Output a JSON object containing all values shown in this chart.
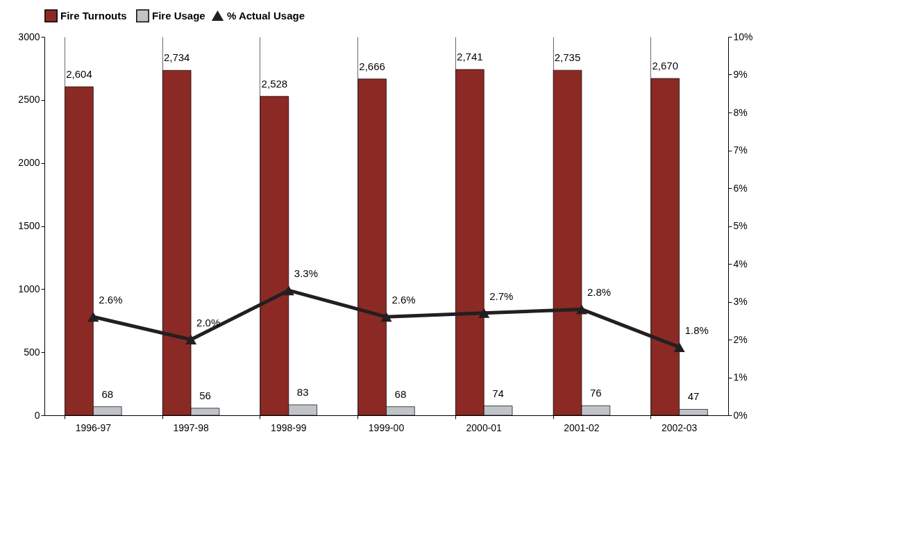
{
  "chart_data": {
    "type": "bar",
    "categories": [
      "1996-97",
      "1997-98",
      "1998-99",
      "1999-00",
      "2000-01",
      "2001-02",
      "2002-03"
    ],
    "series": [
      {
        "name": "Fire Turnouts",
        "color": "#8b2a25",
        "values": [
          2604,
          2734,
          2528,
          2666,
          2741,
          2735,
          2670
        ],
        "value_labels": [
          "2,604",
          "2,734",
          "2,528",
          "2,666",
          "2,741",
          "2,735",
          "2,670"
        ]
      },
      {
        "name": "Fire Usage",
        "color": "#c0c3c8",
        "values": [
          68,
          56,
          83,
          68,
          74,
          76,
          47
        ],
        "value_labels": [
          "68",
          "56",
          "83",
          "68",
          "74",
          "76",
          "47"
        ]
      },
      {
        "name": "% Actual Usage",
        "type": "line",
        "axis": "y2",
        "color": "#231f20",
        "values": [
          2.6,
          2.0,
          3.3,
          2.6,
          2.7,
          2.8,
          1.8
        ],
        "value_labels": [
          "2.6%",
          "2.0%",
          "3.3%",
          "2.6%",
          "2.7%",
          "2.8%",
          "1.8%"
        ]
      }
    ],
    "ylim": [
      0,
      3000
    ],
    "yticks": [
      0,
      500,
      1000,
      1500,
      2000,
      2500,
      3000
    ],
    "y2lim": [
      0,
      10
    ],
    "y2ticks": [
      {
        "value": 0,
        "label": "0%"
      },
      {
        "value": 1,
        "label": "1%"
      },
      {
        "value": 2,
        "label": "2%"
      },
      {
        "value": 3,
        "label": "3%"
      },
      {
        "value": 4,
        "label": "4%"
      },
      {
        "value": 5,
        "label": "5%"
      },
      {
        "value": 6,
        "label": "6%"
      },
      {
        "value": 7,
        "label": "7%"
      },
      {
        "value": 8,
        "label": "8%"
      },
      {
        "value": 9,
        "label": "9%"
      },
      {
        "value": 10,
        "label": "10%"
      }
    ],
    "grid": "x",
    "legend": "top",
    "marker": "triangle",
    "line_style": "solid"
  }
}
